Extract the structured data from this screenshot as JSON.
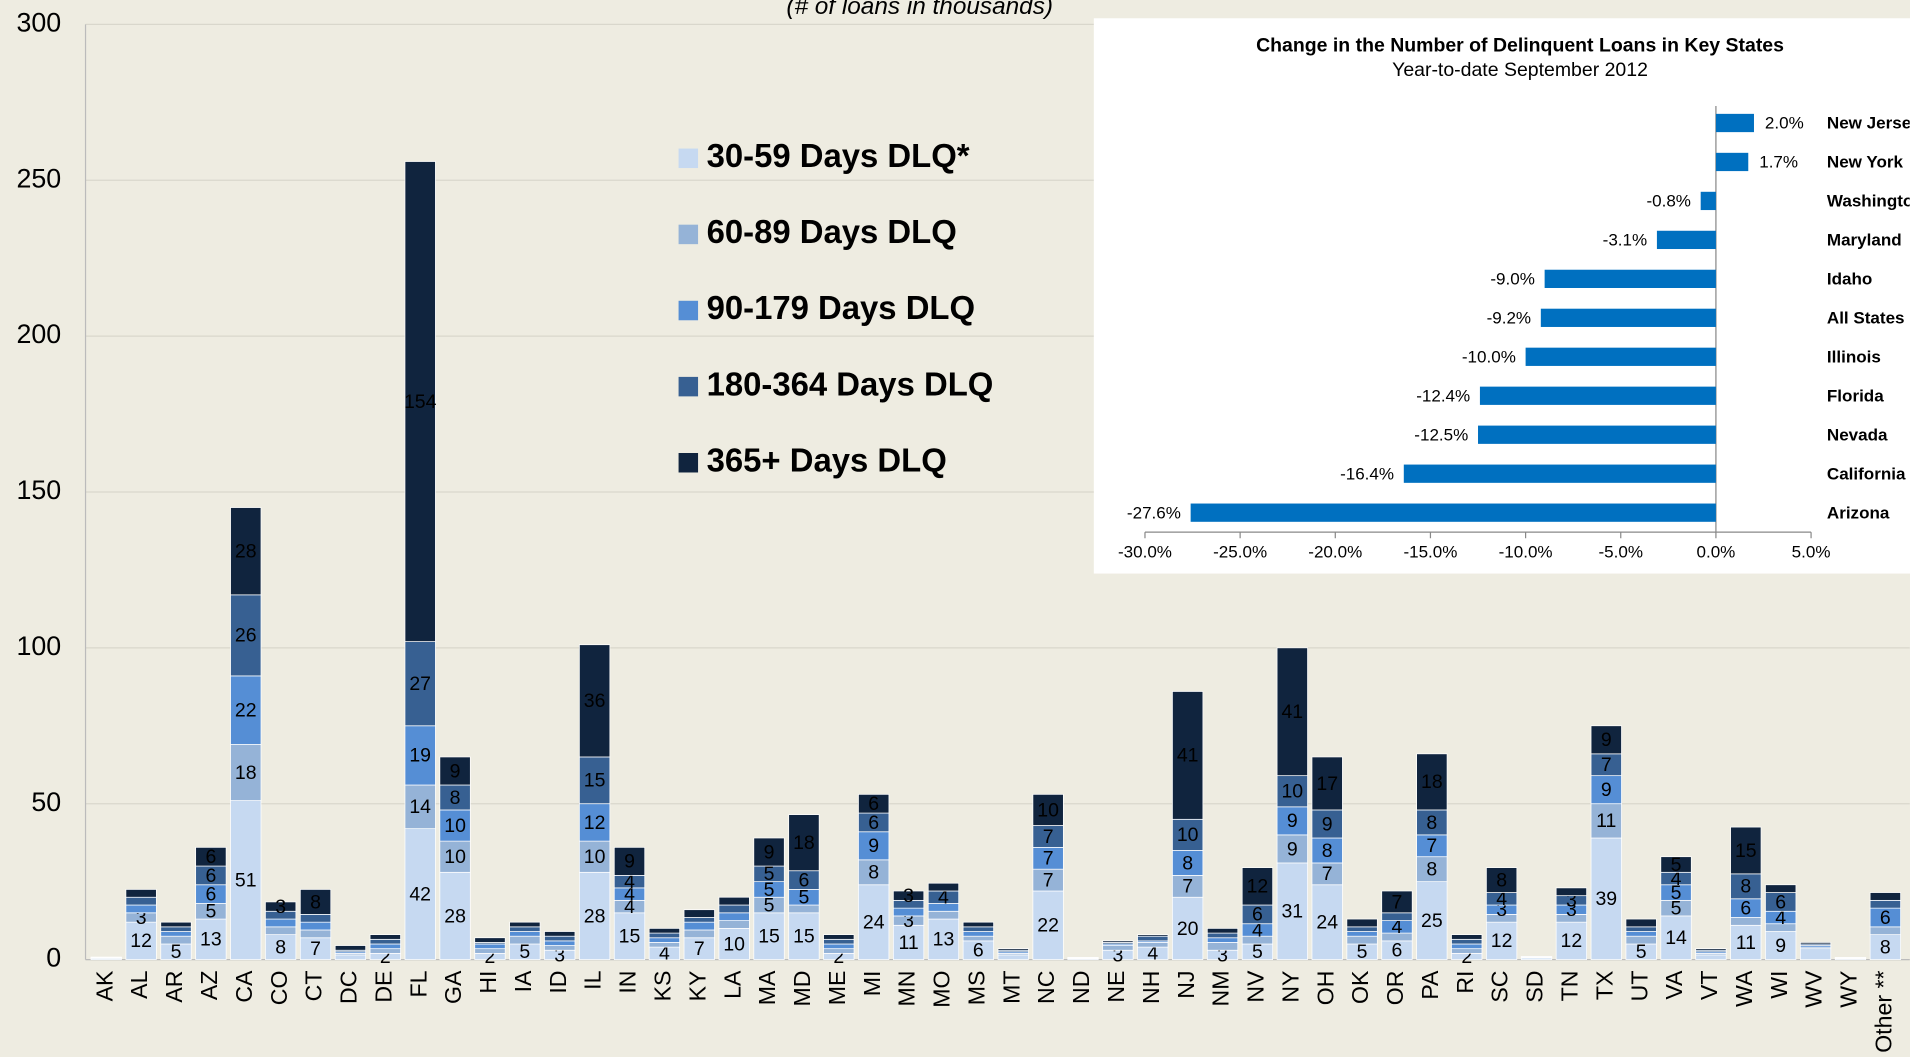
{
  "chart_data": [
    {
      "type": "stacked_bar",
      "subtitle": "(# of loans in thousands)",
      "categories": [
        "AK",
        "AL",
        "AR",
        "AZ",
        "CA",
        "CO",
        "CT",
        "DC",
        "DE",
        "FL",
        "GA",
        "HI",
        "IA",
        "ID",
        "IL",
        "IN",
        "KS",
        "KY",
        "LA",
        "MA",
        "MD",
        "ME",
        "MI",
        "MN",
        "MO",
        "MS",
        "MT",
        "NC",
        "ND",
        "NE",
        "NH",
        "NJ",
        "NM",
        "NV",
        "NY",
        "OH",
        "OK",
        "OR",
        "PA",
        "RI",
        "SC",
        "SD",
        "TN",
        "TX",
        "UT",
        "VA",
        "VT",
        "WA",
        "WI",
        "WV",
        "WY",
        "Other **"
      ],
      "series": [
        {
          "name": "30-59 Days DLQ*",
          "color": "#c6d9f1",
          "values": [
            0.4,
            12,
            5,
            13,
            51,
            8,
            7,
            1.5,
            2,
            42,
            28,
            2,
            5,
            3,
            28,
            15,
            4,
            7,
            10,
            15,
            15,
            2,
            24,
            11,
            13,
            6,
            1.5,
            22,
            0.3,
            3,
            4,
            20,
            3,
            5,
            31,
            24,
            5,
            6,
            25,
            2,
            12,
            0.5,
            12,
            39,
            5,
            14,
            1.5,
            11,
            9,
            3.5,
            0.3,
            8
          ]
        },
        {
          "name": "60-89 Days DLQ",
          "color": "#95b3d7",
          "values": [
            0.1,
            3,
            2.5,
            5,
            18,
            2.5,
            2.5,
            0.5,
            1.5,
            14,
            10,
            1.5,
            2.5,
            1.5,
            10,
            4,
            1.5,
            2.5,
            2.5,
            5,
            2.5,
            1.5,
            8,
            3,
            2.5,
            1.5,
            0.5,
            7,
            0.1,
            1.5,
            1.5,
            7,
            2.5,
            2.5,
            9,
            7,
            2.5,
            2.5,
            8,
            1.5,
            2.5,
            0.2,
            2.5,
            11,
            2.5,
            5,
            0.5,
            2.5,
            2.5,
            0.5,
            0.1,
            2.5
          ]
        },
        {
          "name": "90-179 Days DLQ",
          "color": "#558ed5",
          "values": [
            0.1,
            2.5,
            1.5,
            6,
            22,
            2.5,
            2.5,
            0.5,
            1.5,
            19,
            10,
            1.5,
            1.5,
            1.5,
            12,
            4,
            1.5,
            2.5,
            2.5,
            5,
            5,
            1.5,
            9,
            2.5,
            2.5,
            1.5,
            0.5,
            7,
            0.1,
            0.5,
            0.5,
            8,
            1.5,
            4,
            9,
            8,
            1.5,
            4,
            7,
            1.5,
            3,
            0.1,
            3,
            9,
            1.5,
            5,
            0.5,
            6,
            4,
            0.5,
            0.1,
            6
          ]
        },
        {
          "name": "180-364 Days DLQ",
          "color": "#376092",
          "values": [
            0.1,
            2.5,
            1.5,
            6,
            26,
            2.5,
            2.5,
            0.5,
            1.5,
            27,
            8,
            0.5,
            1.5,
            1.5,
            15,
            4,
            1.5,
            1.5,
            2.5,
            5,
            6,
            1.5,
            6,
            2.5,
            4,
            1.5,
            0.5,
            7,
            0.1,
            0.5,
            1.5,
            10,
            1.5,
            6,
            10,
            9,
            1.5,
            2.5,
            8,
            1.5,
            4,
            0.1,
            3,
            7,
            1.5,
            4,
            0.5,
            8,
            6,
            0.5,
            0.1,
            2.5
          ]
        },
        {
          "name": "365+ Days DLQ",
          "color": "#10243e",
          "values": [
            0.1,
            2.5,
            1.5,
            6,
            28,
            3,
            8,
            1.5,
            1.5,
            154,
            9,
            1.5,
            1.5,
            1.5,
            36,
            9,
            1.5,
            2.5,
            2.5,
            9,
            18,
            1.5,
            6,
            3,
            2.5,
            1.5,
            0.5,
            10,
            0.1,
            0.5,
            0.5,
            41,
            1.5,
            12,
            41,
            17,
            2.5,
            7,
            18,
            1.5,
            8,
            0.1,
            2.5,
            9,
            2.5,
            5,
            0.5,
            15,
            2.5,
            0.5,
            0.1,
            2.5
          ]
        }
      ],
      "ylim": [
        0,
        300
      ],
      "yticks": [
        0,
        50,
        100,
        150,
        200,
        250,
        300
      ],
      "grid": true
    },
    {
      "type": "barh",
      "title": "Change in the Number of Delinquent Loans in Key States",
      "subtitle": "Year-to-date September 2012",
      "categories": [
        "New Jersey",
        "New York",
        "Washington",
        "Maryland",
        "Idaho",
        "All States",
        "Illinois",
        "Florida",
        "Nevada",
        "California",
        "Arizona"
      ],
      "values": [
        2.0,
        1.7,
        -0.8,
        -3.1,
        -9.0,
        -9.2,
        -10.0,
        -12.4,
        -12.5,
        -16.4,
        -27.6
      ],
      "value_labels": [
        "2.0%",
        "1.7%",
        "-0.8%",
        "-3.1%",
        "-9.0%",
        "-9.2%",
        "-10.0%",
        "-12.4%",
        "-12.5%",
        "-16.4%",
        "-27.6%"
      ],
      "color": "#0070c0",
      "xlim": [
        -30,
        5
      ],
      "xticks": [
        {
          "value": -30,
          "label": "-30.0%"
        },
        {
          "value": -25,
          "label": "-25.0%"
        },
        {
          "value": -20,
          "label": "-20.0%"
        },
        {
          "value": -15,
          "label": "-15.0%"
        },
        {
          "value": -10,
          "label": "-10.0%"
        },
        {
          "value": -5,
          "label": "-5.0%"
        },
        {
          "value": 0,
          "label": "0.0%"
        },
        {
          "value": 5,
          "label": "5.0%"
        }
      ]
    }
  ]
}
